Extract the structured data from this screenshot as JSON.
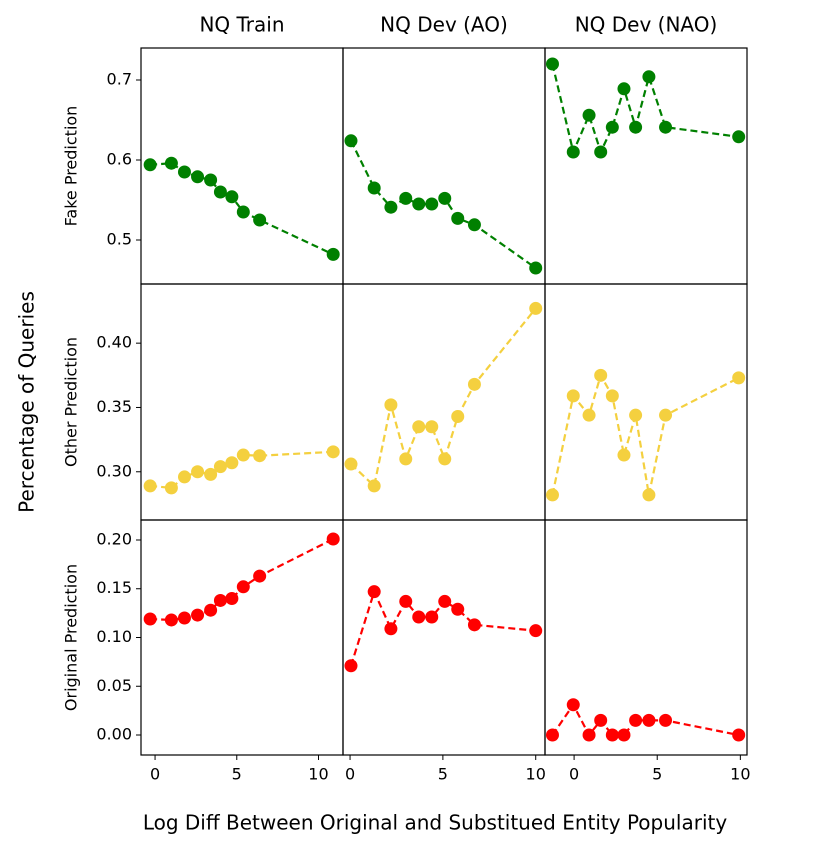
{
  "ylabel": "Percentage of Queries",
  "xlabel": "Log Diff Between Original and Substitued Entity Popularity",
  "chart_data": [
    {
      "type": "line",
      "title": "NQ Train",
      "ylabel": "Fake Prediction",
      "color": "#008000",
      "x": [
        -0.3,
        1.0,
        1.8,
        2.6,
        3.4,
        4.0,
        4.7,
        5.4,
        6.4,
        10.9
      ],
      "values": [
        0.594,
        0.596,
        0.585,
        0.579,
        0.575,
        0.56,
        0.554,
        0.535,
        0.525,
        0.482
      ],
      "xlim": [
        -0.86,
        11.5
      ],
      "ylim": [
        0.445,
        0.74
      ],
      "yticks": [
        0.5,
        0.6,
        0.7
      ]
    },
    {
      "type": "line",
      "title": "NQ Dev (AO)",
      "color": "#008000",
      "x": [
        0.05,
        1.3,
        2.2,
        3.0,
        3.7,
        4.4,
        5.1,
        5.8,
        6.7,
        10.0
      ],
      "values": [
        0.624,
        0.565,
        0.541,
        0.552,
        0.545,
        0.545,
        0.552,
        0.527,
        0.519,
        0.465
      ],
      "xlim": [
        -0.38,
        10.5
      ],
      "ylim": [
        0.445,
        0.74
      ]
    },
    {
      "type": "line",
      "title": "NQ Dev (NAO)",
      "color": "#008000",
      "x": [
        -1.3,
        -0.05,
        0.9,
        1.6,
        2.3,
        3.0,
        3.7,
        4.5,
        5.5,
        9.9
      ],
      "values": [
        0.72,
        0.61,
        0.656,
        0.61,
        0.641,
        0.689,
        0.641,
        0.704,
        0.641,
        0.629
      ],
      "xlim": [
        -1.75,
        10.4
      ],
      "ylim": [
        0.445,
        0.74
      ]
    },
    {
      "type": "line",
      "ylabel": "Other Prediction",
      "color": "#f4d03f",
      "x": [
        -0.3,
        1.0,
        1.8,
        2.6,
        3.4,
        4.0,
        4.7,
        5.4,
        6.4,
        10.9
      ],
      "values": [
        0.289,
        0.2875,
        0.296,
        0.3,
        0.298,
        0.304,
        0.307,
        0.313,
        0.3125,
        0.3155
      ],
      "xlim": [
        -0.86,
        11.5
      ],
      "ylim": [
        0.2625,
        0.446
      ],
      "yticks": [
        {
          "value": 0.3,
          "label": "0.30"
        },
        0.35,
        {
          "value": 0.4,
          "label": "0.40"
        }
      ]
    },
    {
      "type": "line",
      "color": "#f4d03f",
      "x": [
        0.05,
        1.3,
        2.2,
        3.0,
        3.7,
        4.4,
        5.1,
        5.8,
        6.7,
        10.0
      ],
      "values": [
        0.306,
        0.289,
        0.352,
        0.31,
        0.335,
        0.335,
        0.31,
        0.343,
        0.368,
        0.427
      ],
      "xlim": [
        -0.38,
        10.5
      ],
      "ylim": [
        0.2625,
        0.446
      ]
    },
    {
      "type": "line",
      "color": "#f4d03f",
      "x": [
        -1.3,
        -0.05,
        0.9,
        1.6,
        2.3,
        3.0,
        3.7,
        4.5,
        5.5,
        9.9
      ],
      "values": [
        0.282,
        0.359,
        0.344,
        0.375,
        0.359,
        0.313,
        0.344,
        0.282,
        0.344,
        0.373
      ],
      "xlim": [
        -1.75,
        10.4
      ],
      "ylim": [
        0.2625,
        0.446
      ]
    },
    {
      "type": "line",
      "ylabel": "Original Prediction",
      "color": "#ff0000",
      "x": [
        -0.3,
        1.0,
        1.8,
        2.6,
        3.4,
        4.0,
        4.7,
        5.4,
        6.4,
        10.9
      ],
      "values": [
        0.119,
        0.118,
        0.12,
        0.123,
        0.128,
        0.138,
        0.14,
        0.152,
        0.163,
        0.201
      ],
      "xlim": [
        -0.86,
        11.5
      ],
      "ylim": [
        -0.0205,
        0.2205
      ],
      "xticks": [
        0,
        5,
        10
      ],
      "yticks": [
        {
          "value": 0,
          "label": "0.00"
        },
        0.05,
        {
          "value": 0.1,
          "label": "0.10"
        },
        0.15,
        {
          "value": 0.2,
          "label": "0.20"
        }
      ]
    },
    {
      "type": "line",
      "color": "#ff0000",
      "x": [
        0.05,
        1.3,
        2.2,
        3.0,
        3.7,
        4.4,
        5.1,
        5.8,
        6.7,
        10.0
      ],
      "values": [
        0.071,
        0.147,
        0.109,
        0.137,
        0.121,
        0.121,
        0.137,
        0.129,
        0.113,
        0.107
      ],
      "xlim": [
        -0.38,
        10.5
      ],
      "ylim": [
        -0.0205,
        0.2205
      ],
      "xticks": [
        0,
        5,
        10
      ]
    },
    {
      "type": "line",
      "color": "#ff0000",
      "x": [
        -1.3,
        -0.05,
        0.9,
        1.6,
        2.3,
        3.0,
        3.7,
        4.5,
        5.5,
        9.9
      ],
      "values": [
        0,
        0.031,
        0,
        0.015,
        0,
        0,
        0.015,
        0.015,
        0.015,
        0
      ],
      "xlim": [
        -1.75,
        10.4
      ],
      "ylim": [
        -0.0205,
        0.2205
      ],
      "xticks": [
        0,
        5,
        10
      ]
    }
  ]
}
